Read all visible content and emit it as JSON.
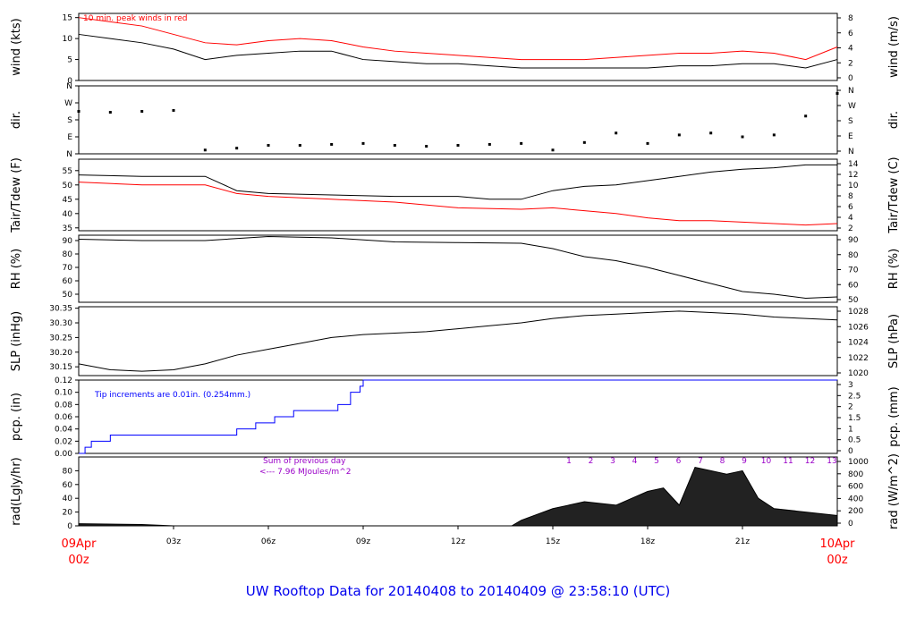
{
  "title": "UW Rooftop Data for 20140408  to  20140409 @ 23:58:10  (UTC)",
  "colors": {
    "axis": "#000000",
    "red": "#ff0000",
    "blue": "#0000ff",
    "purple": "#9a00c8",
    "title": "#0000ee"
  },
  "x_axis": {
    "start_top": "09Apr",
    "start_bottom": "00z",
    "end_top": "10Apr",
    "end_bottom": "00z",
    "ticks": [
      "03z",
      "06z",
      "09z",
      "12z",
      "15z",
      "18z",
      "21z"
    ]
  },
  "chart_data": [
    {
      "type": "line",
      "id": "wind",
      "ylabel": "wind (kts)",
      "ylabel_right": "wind (m/s)",
      "ylim": [
        0,
        16
      ],
      "yticks": [
        0,
        5,
        10,
        15
      ],
      "right_ticks": [
        "0",
        "2",
        "4",
        "6",
        "8"
      ],
      "annotation": "10 min. peak winds in red",
      "series": [
        {
          "color": "#000000",
          "points": [
            [
              0,
              11
            ],
            [
              1,
              10
            ],
            [
              2,
              9
            ],
            [
              3,
              7.5
            ],
            [
              4,
              5
            ],
            [
              5,
              6
            ],
            [
              6,
              6.5
            ],
            [
              7,
              7
            ],
            [
              8,
              7
            ],
            [
              9,
              5
            ],
            [
              10,
              4.5
            ],
            [
              11,
              4
            ],
            [
              12,
              4
            ],
            [
              13,
              3.5
            ],
            [
              14,
              3
            ],
            [
              15,
              3
            ],
            [
              16,
              3
            ],
            [
              17,
              3
            ],
            [
              18,
              3
            ],
            [
              19,
              3.5
            ],
            [
              20,
              3.5
            ],
            [
              21,
              4
            ],
            [
              22,
              4
            ],
            [
              23,
              3
            ],
            [
              24,
              5
            ]
          ]
        },
        {
          "color": "#ff0000",
          "points": [
            [
              0,
              15
            ],
            [
              1,
              14
            ],
            [
              2,
              13
            ],
            [
              3,
              11
            ],
            [
              4,
              9
            ],
            [
              5,
              8.5
            ],
            [
              6,
              9.5
            ],
            [
              7,
              10
            ],
            [
              8,
              9.5
            ],
            [
              9,
              8
            ],
            [
              10,
              7
            ],
            [
              11,
              6.5
            ],
            [
              12,
              6
            ],
            [
              13,
              5.5
            ],
            [
              14,
              5
            ],
            [
              15,
              5
            ],
            [
              16,
              5
            ],
            [
              17,
              5.5
            ],
            [
              18,
              6
            ],
            [
              19,
              6.5
            ],
            [
              20,
              6.5
            ],
            [
              21,
              7
            ],
            [
              22,
              6.5
            ],
            [
              23,
              5
            ],
            [
              24,
              8
            ]
          ]
        }
      ]
    },
    {
      "type": "scatter",
      "id": "dir",
      "ylabel": "dir.",
      "ylabel_right": "dir.",
      "ylim": [
        0,
        360
      ],
      "yticks_labels": [
        "N",
        "E",
        "S",
        "W",
        "N"
      ],
      "right_ticks": [
        "N",
        "E",
        "S",
        "W",
        "N"
      ],
      "series": [
        {
          "color": "#000000",
          "points": [
            [
              0,
              225
            ],
            [
              1,
              220
            ],
            [
              2,
              225
            ],
            [
              3,
              230
            ],
            [
              4,
              20
            ],
            [
              5,
              30
            ],
            [
              6,
              45
            ],
            [
              7,
              45
            ],
            [
              8,
              50
            ],
            [
              9,
              55
            ],
            [
              10,
              45
            ],
            [
              11,
              40
            ],
            [
              12,
              45
            ],
            [
              13,
              50
            ],
            [
              14,
              55
            ],
            [
              15,
              20
            ],
            [
              16,
              60
            ],
            [
              17,
              110
            ],
            [
              18,
              55
            ],
            [
              19,
              100
            ],
            [
              20,
              110
            ],
            [
              21,
              90
            ],
            [
              22,
              100
            ],
            [
              23,
              200
            ],
            [
              24,
              320
            ]
          ]
        }
      ]
    },
    {
      "type": "line",
      "id": "temp",
      "ylabel": "Tair/Tdew (F)",
      "ylabel_right": "Tair/Tdew (C)",
      "ylim": [
        34,
        59
      ],
      "yticks": [
        35,
        40,
        45,
        50,
        55
      ],
      "right_ticks": [
        "2",
        "4",
        "6",
        "8",
        "10",
        "12",
        "14"
      ],
      "series": [
        {
          "color": "#000000",
          "points": [
            [
              0,
              53.5
            ],
            [
              2,
              53
            ],
            [
              4,
              53
            ],
            [
              5,
              48
            ],
            [
              6,
              47
            ],
            [
              8,
              46.5
            ],
            [
              10,
              46
            ],
            [
              12,
              46
            ],
            [
              13,
              45
            ],
            [
              14,
              45
            ],
            [
              15,
              48
            ],
            [
              16,
              49.5
            ],
            [
              17,
              50
            ],
            [
              18,
              51.5
            ],
            [
              19,
              53
            ],
            [
              20,
              54.5
            ],
            [
              21,
              55.5
            ],
            [
              22,
              56
            ],
            [
              23,
              57
            ],
            [
              24,
              57
            ]
          ]
        },
        {
          "color": "#ff0000",
          "points": [
            [
              0,
              51
            ],
            [
              2,
              50
            ],
            [
              4,
              50
            ],
            [
              5,
              47
            ],
            [
              6,
              46
            ],
            [
              8,
              45
            ],
            [
              10,
              44
            ],
            [
              12,
              42
            ],
            [
              14,
              41.5
            ],
            [
              15,
              42
            ],
            [
              16,
              41
            ],
            [
              17,
              40
            ],
            [
              18,
              38.5
            ],
            [
              19,
              37.5
            ],
            [
              20,
              37.5
            ],
            [
              21,
              37
            ],
            [
              22,
              36.5
            ],
            [
              23,
              36
            ],
            [
              24,
              36.5
            ]
          ]
        }
      ]
    },
    {
      "type": "line",
      "id": "rh",
      "ylabel": "RH (%)",
      "ylabel_right": "RH (%)",
      "ylim": [
        44,
        94
      ],
      "yticks": [
        50,
        60,
        70,
        80,
        90
      ],
      "right_ticks": [
        "50",
        "60",
        "70",
        "80",
        "90"
      ],
      "series": [
        {
          "color": "#000000",
          "points": [
            [
              0,
              91
            ],
            [
              2,
              90
            ],
            [
              4,
              90
            ],
            [
              6,
              93
            ],
            [
              8,
              92
            ],
            [
              10,
              89
            ],
            [
              12,
              88.5
            ],
            [
              14,
              88
            ],
            [
              15,
              84
            ],
            [
              16,
              78
            ],
            [
              17,
              75
            ],
            [
              18,
              70
            ],
            [
              19,
              64
            ],
            [
              20,
              58
            ],
            [
              21,
              52
            ],
            [
              22,
              50
            ],
            [
              23,
              47
            ],
            [
              24,
              48
            ]
          ]
        }
      ]
    },
    {
      "type": "line",
      "id": "slp",
      "ylabel": "SLP (inHg)",
      "ylabel_right": "SLP (hPa)",
      "ylim": [
        30.12,
        30.355
      ],
      "yticks": [
        30.15,
        30.2,
        30.25,
        30.3,
        30.35
      ],
      "ytick_labels": [
        "30.15",
        "30.20",
        "30.25",
        "30.30",
        "30.35"
      ],
      "right_ticks": [
        "1020",
        "1022",
        "1024",
        "1026",
        "1028"
      ],
      "series": [
        {
          "color": "#000000",
          "points": [
            [
              0,
              30.16
            ],
            [
              1,
              30.14
            ],
            [
              2,
              30.135
            ],
            [
              3,
              30.14
            ],
            [
              4,
              30.16
            ],
            [
              5,
              30.19
            ],
            [
              6,
              30.21
            ],
            [
              7,
              30.23
            ],
            [
              8,
              30.25
            ],
            [
              9,
              30.26
            ],
            [
              10,
              30.265
            ],
            [
              11,
              30.27
            ],
            [
              12,
              30.28
            ],
            [
              13,
              30.29
            ],
            [
              14,
              30.3
            ],
            [
              15,
              30.315
            ],
            [
              16,
              30.325
            ],
            [
              17,
              30.33
            ],
            [
              18,
              30.335
            ],
            [
              19,
              30.34
            ],
            [
              20,
              30.335
            ],
            [
              21,
              30.33
            ],
            [
              22,
              30.32
            ],
            [
              23,
              30.315
            ],
            [
              24,
              30.31
            ]
          ]
        }
      ]
    },
    {
      "type": "line",
      "id": "pcp",
      "ylabel": "pcp. (in)",
      "ylabel_right": "pcp. (mm)",
      "ylim": [
        0,
        0.12
      ],
      "yticks": [
        0,
        0.02,
        0.04,
        0.06,
        0.08,
        0.1,
        0.12
      ],
      "ytick_labels": [
        "0.00",
        "0.02",
        "0.04",
        "0.06",
        "0.08",
        "0.10",
        "0.12"
      ],
      "right_ticks": [
        "0",
        "0.5",
        "1",
        "1.5",
        "2",
        "2.5",
        "3"
      ],
      "annotation": "Tip increments are 0.01in. (0.254mm.)",
      "series": [
        {
          "color": "#0000ff",
          "points": [
            [
              0,
              0
            ],
            [
              0.2,
              0.01
            ],
            [
              0.4,
              0.02
            ],
            [
              1,
              0.03
            ],
            [
              5,
              0.04
            ],
            [
              5.6,
              0.05
            ],
            [
              6.2,
              0.06
            ],
            [
              6.8,
              0.07
            ],
            [
              8.2,
              0.08
            ],
            [
              8.6,
              0.1
            ],
            [
              8.9,
              0.11
            ],
            [
              9,
              0.12
            ],
            [
              24,
              0.12
            ]
          ]
        }
      ]
    },
    {
      "type": "area",
      "id": "rad",
      "ylabel": "rad(Lgly/hr)",
      "ylabel_right": "rad (W/m^2)",
      "ylim": [
        0,
        100
      ],
      "yticks": [
        0,
        20,
        40,
        60,
        80
      ],
      "right_ticks": [
        "0",
        "200",
        "400",
        "600",
        "800",
        "1000"
      ],
      "annotation_title": "Sum of previous day",
      "annotation_value": "<--- 7.96 MJoules/m^2",
      "hour_labels": [
        "1",
        "2",
        "3",
        "4",
        "5",
        "6",
        "7",
        "8",
        "9",
        "10",
        "11",
        "12",
        "13"
      ],
      "series": [
        {
          "color": "#000000",
          "points": [
            [
              0,
              3
            ],
            [
              2,
              2
            ],
            [
              3,
              0
            ],
            [
              13.7,
              0
            ],
            [
              14,
              8
            ],
            [
              15,
              25
            ],
            [
              16,
              35
            ],
            [
              17,
              30
            ],
            [
              18,
              50
            ],
            [
              18.5,
              55
            ],
            [
              19,
              30
            ],
            [
              19.5,
              85
            ],
            [
              20,
              80
            ],
            [
              20.5,
              75
            ],
            [
              21,
              80
            ],
            [
              21.5,
              40
            ],
            [
              22,
              25
            ],
            [
              23,
              20
            ],
            [
              24,
              15
            ]
          ]
        }
      ]
    }
  ]
}
